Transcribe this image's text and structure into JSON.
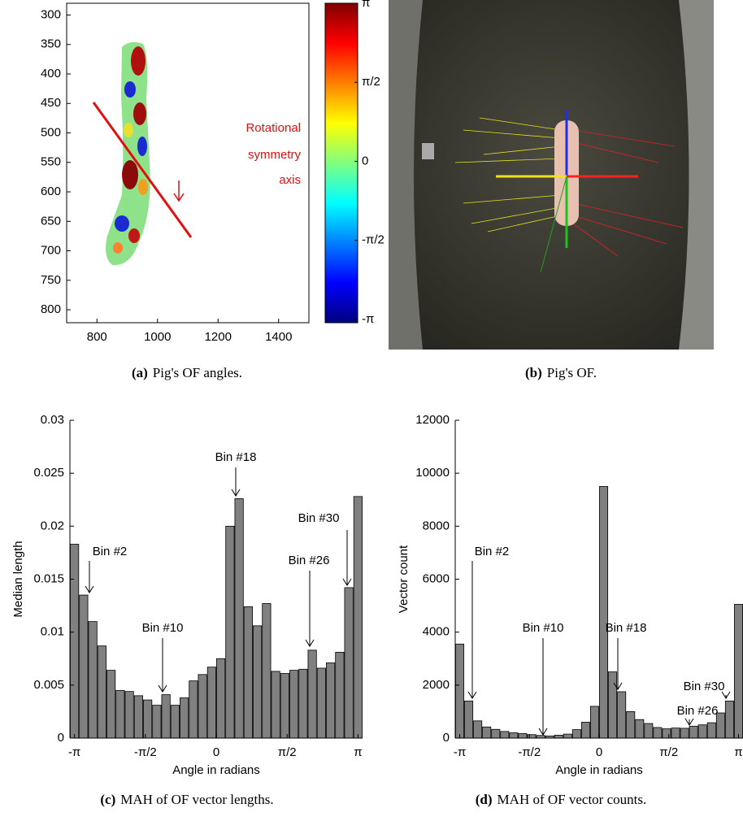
{
  "chart_data": [
    {
      "type": "heatmap",
      "xlim": [
        700,
        1500
      ],
      "xticks": [
        800,
        1000,
        1200,
        1400
      ],
      "ylim": [
        822,
        280
      ],
      "yticks": [
        300,
        350,
        400,
        450,
        500,
        550,
        600,
        650,
        700,
        750,
        800
      ],
      "colorbar": {
        "lim": [
          -3.1416,
          3.1416
        ],
        "ticks": [
          {
            "value": 3.1416,
            "label": "π"
          },
          {
            "value": 1.5708,
            "label": "π/2"
          },
          0,
          {
            "value": -1.5708,
            "label": "-π/2"
          },
          {
            "value": -3.1416,
            "label": "-π"
          }
        ]
      },
      "annotations": [
        "Rotational",
        "symmetry",
        "axis"
      ],
      "caption": {
        "label": "(a)",
        "text": "Pig's OF angles."
      }
    },
    {
      "type": "image",
      "caption": {
        "label": "(b)",
        "text": "Pig's OF."
      }
    },
    {
      "type": "bar",
      "color": "#808080",
      "x": [
        -3.1416,
        -2.9389,
        -2.7362,
        -2.5335,
        -2.3309,
        -2.1282,
        -1.9255,
        -1.7228,
        -1.5201,
        -1.3174,
        -1.1148,
        -0.9121,
        -0.7094,
        -0.5067,
        -0.304,
        -0.1013,
        0.1013,
        0.304,
        0.5067,
        0.7094,
        0.9121,
        1.1148,
        1.3174,
        1.5201,
        1.7228,
        1.9255,
        2.1282,
        2.3309,
        2.5335,
        2.7362,
        2.9389,
        3.1416
      ],
      "values": [
        0.0183,
        0.0135,
        0.011,
        0.0087,
        0.0064,
        0.0045,
        0.0044,
        0.004,
        0.0036,
        0.0031,
        0.0041,
        0.0031,
        0.0038,
        0.0054,
        0.006,
        0.0067,
        0.0075,
        0.02,
        0.0226,
        0.0124,
        0.0106,
        0.0127,
        0.0063,
        0.0061,
        0.0064,
        0.0065,
        0.0083,
        0.0066,
        0.0071,
        0.0081,
        0.0142,
        0.0228
      ],
      "xlim": [
        -3.2429,
        3.2429
      ],
      "xticks": [
        {
          "value": -3.1416,
          "label": "-π"
        },
        {
          "value": -1.5708,
          "label": "-π/2"
        },
        0,
        {
          "value": 1.5708,
          "label": "π/2"
        },
        {
          "value": 3.1416,
          "label": "π"
        }
      ],
      "ylim": [
        0,
        0.03
      ],
      "yticks": [
        0,
        0.005,
        0.01,
        0.015,
        0.02,
        0.025,
        0.03
      ],
      "x_label": "Angle in radians",
      "y_label": "Median length",
      "annotations": [
        "Bin #2",
        "Bin #10",
        "Bin #18",
        "Bin #26",
        "Bin #30"
      ],
      "caption": {
        "label": "(c)",
        "text": "MAH of OF vector lengths."
      }
    },
    {
      "type": "bar",
      "color": "#808080",
      "x": [
        -3.1416,
        -2.9389,
        -2.7362,
        -2.5335,
        -2.3309,
        -2.1282,
        -1.9255,
        -1.7228,
        -1.5201,
        -1.3174,
        -1.1148,
        -0.9121,
        -0.7094,
        -0.5067,
        -0.304,
        -0.1013,
        0.1013,
        0.304,
        0.5067,
        0.7094,
        0.9121,
        1.1148,
        1.3174,
        1.5201,
        1.7228,
        1.9255,
        2.1282,
        2.3309,
        2.5335,
        2.7362,
        2.9389,
        3.1416
      ],
      "values": [
        3550,
        1400,
        650,
        420,
        330,
        250,
        200,
        170,
        130,
        100,
        80,
        110,
        150,
        320,
        600,
        1200,
        9500,
        2500,
        1750,
        1000,
        700,
        550,
        400,
        350,
        380,
        370,
        450,
        500,
        580,
        950,
        1400,
        5050
      ],
      "xlim": [
        -3.2429,
        3.2429
      ],
      "xticks": [
        {
          "value": -3.1416,
          "label": "-π"
        },
        {
          "value": -1.5708,
          "label": "-π/2"
        },
        0,
        {
          "value": 1.5708,
          "label": "π/2"
        },
        {
          "value": 3.1416,
          "label": "π"
        }
      ],
      "ylim": [
        0,
        12000
      ],
      "yticks": [
        0,
        2000,
        4000,
        6000,
        8000,
        10000,
        12000
      ],
      "x_label": "Angle in radians",
      "y_label": "Vector count",
      "annotations": [
        "Bin #2",
        "Bin #10",
        "Bin #18",
        "Bin #26",
        "Bin #30"
      ],
      "caption": {
        "label": "(d)",
        "text": "MAH of OF vector counts."
      }
    }
  ]
}
